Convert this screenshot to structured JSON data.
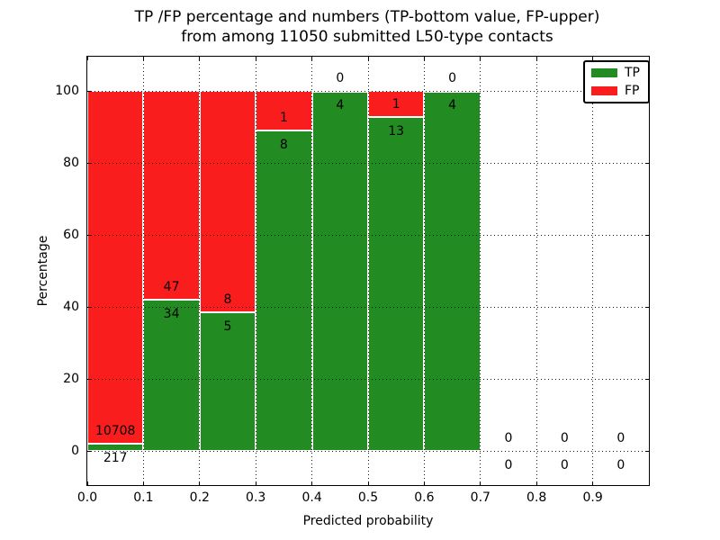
{
  "figure": {
    "title_line1": "TP /FP percentage and numbers (TP-bottom value, FP-upper)",
    "title_line2": "from among 11050 submitted L50-type contacts"
  },
  "axes": {
    "xlabel": "Predicted probability",
    "ylabel": "Percentage",
    "x_tick_labels": [
      "0.0",
      "0.1",
      "0.2",
      "0.3",
      "0.4",
      "0.5",
      "0.6",
      "0.7",
      "0.8",
      "0.9"
    ],
    "x_tick_values": [
      0.0,
      0.1,
      0.2,
      0.3,
      0.4,
      0.5,
      0.6,
      0.7,
      0.8,
      0.9
    ],
    "y_tick_labels": [
      "0",
      "20",
      "40",
      "60",
      "80",
      "100"
    ],
    "y_tick_values": [
      0,
      20,
      40,
      60,
      80,
      100
    ]
  },
  "legend": {
    "position": "upper-right",
    "items": [
      {
        "label": "TP",
        "color": "#228b22"
      },
      {
        "label": "FP",
        "color": "#fa1d1d"
      }
    ]
  },
  "colors": {
    "tp_green": "#228b22",
    "fp_red": "#fa1d1d",
    "grid": "#000000",
    "background": "#ffffff"
  },
  "chart_data": {
    "type": "bar",
    "stacked": true,
    "normalized_to_percent": true,
    "title": "TP /FP percentage and numbers (TP-bottom value, FP-upper) from among 11050 submitted L50-type contacts",
    "xlabel": "Predicted probability",
    "ylabel": "Percentage",
    "xlim": [
      0.0,
      1.0
    ],
    "ylim": [
      -9.5,
      109.5
    ],
    "grid": "dotted, drawn above bars",
    "total_contacts": 11050,
    "bin_width": 0.1,
    "series": [
      {
        "name": "TP",
        "color": "#228b22",
        "counts": [
          217,
          34,
          5,
          8,
          4,
          13,
          4,
          0,
          0,
          0
        ]
      },
      {
        "name": "FP",
        "color": "#fa1d1d",
        "counts": [
          10708,
          47,
          8,
          1,
          0,
          1,
          0,
          0,
          0,
          0
        ]
      }
    ],
    "bins": [
      {
        "range": [
          0.0,
          0.1
        ],
        "tp": 217,
        "fp": 10708
      },
      {
        "range": [
          0.1,
          0.2
        ],
        "tp": 34,
        "fp": 47
      },
      {
        "range": [
          0.2,
          0.3
        ],
        "tp": 5,
        "fp": 8
      },
      {
        "range": [
          0.3,
          0.4
        ],
        "tp": 8,
        "fp": 1
      },
      {
        "range": [
          0.4,
          0.5
        ],
        "tp": 4,
        "fp": 0
      },
      {
        "range": [
          0.5,
          0.6
        ],
        "tp": 13,
        "fp": 1
      },
      {
        "range": [
          0.6,
          0.7
        ],
        "tp": 4,
        "fp": 0
      },
      {
        "range": [
          0.7,
          0.8
        ],
        "tp": 0,
        "fp": 0
      },
      {
        "range": [
          0.8,
          0.9
        ],
        "tp": 0,
        "fp": 0
      },
      {
        "range": [
          0.9,
          1.0
        ],
        "tp": 0,
        "fp": 0
      }
    ]
  }
}
